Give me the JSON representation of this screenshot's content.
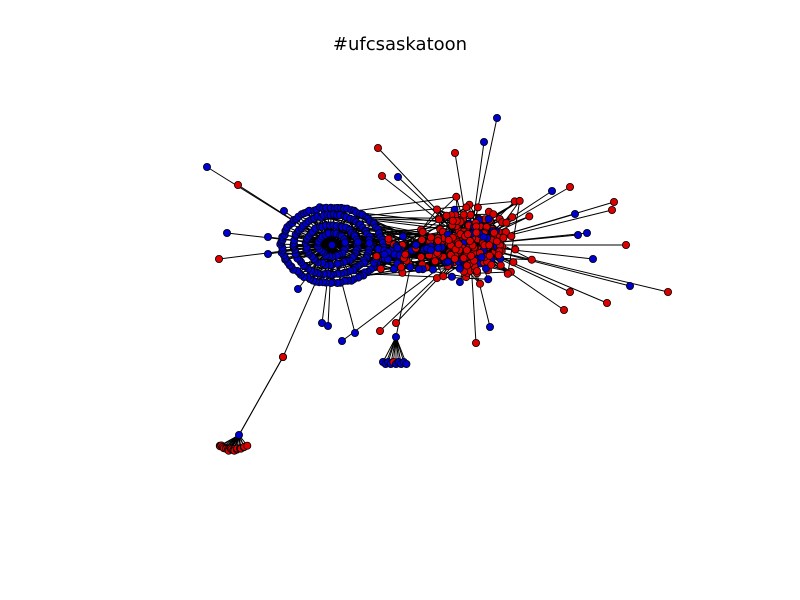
{
  "title": "#ufcsaskatoon",
  "colors": {
    "background": "#ffffff",
    "edge": "#000000",
    "node_stroke": "#000000",
    "group_blue": "#0000cc",
    "group_red": "#dd0000"
  }
}
